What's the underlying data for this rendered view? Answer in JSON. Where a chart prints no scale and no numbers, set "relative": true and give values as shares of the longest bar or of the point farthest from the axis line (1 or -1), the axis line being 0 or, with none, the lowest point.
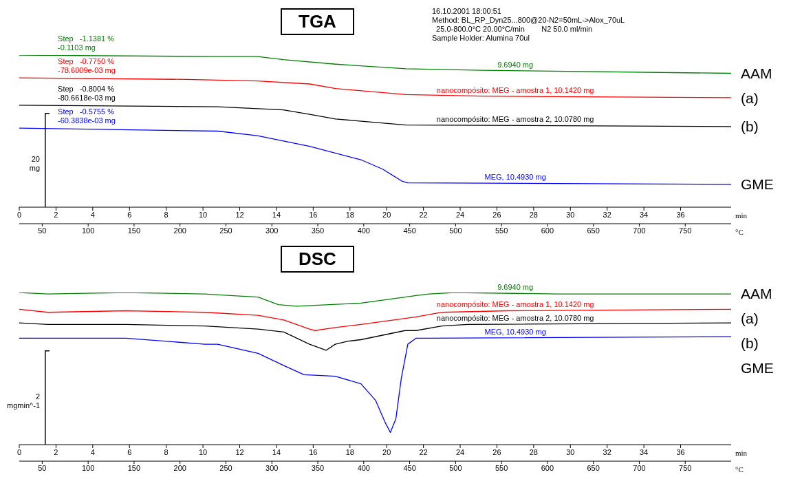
{
  "chart_data": [
    {
      "type": "line",
      "title": "TGA",
      "relative": true,
      "xlabel": "min",
      "x2label": "°C",
      "xlim": [
        0,
        38.75
      ],
      "xticks": [
        0,
        2,
        4,
        6,
        8,
        10,
        12,
        14,
        16,
        18,
        20,
        22,
        24,
        26,
        28,
        30,
        32,
        34,
        36
      ],
      "x2lim": [
        25,
        800
      ],
      "x2ticks": [
        50,
        100,
        150,
        200,
        250,
        300,
        350,
        400,
        450,
        500,
        550,
        600,
        650,
        700,
        750
      ],
      "legend": false,
      "marker": "none",
      "line_style": "solid",
      "series": [
        {
          "name": "9.6940 mg",
          "color": "#008000",
          "x": [
            0,
            10.81,
            12.96,
            14.37,
            17.22,
            21.04,
            25.15,
            38.74
          ],
          "values": [
            1.0,
            0.99,
            0.99,
            0.97,
            0.94,
            0.91,
            0.9,
            0.88
          ]
        },
        {
          "name": "nanocompósito: MEG - amostra 1, 10.1420 mg",
          "color": "#ff0000",
          "x": [
            0,
            9.07,
            12.96,
            15.81,
            17.22,
            21.04,
            25.15,
            38.74
          ],
          "values": [
            0.85,
            0.84,
            0.83,
            0.81,
            0.78,
            0.74,
            0.73,
            0.72
          ]
        },
        {
          "name": "nanocompósito: MEG - amostra 2, 10.0780 mg",
          "color": "#000000",
          "x": [
            0,
            10.81,
            14.37,
            15.81,
            17.22,
            21.04,
            38.74
          ],
          "values": [
            0.67,
            0.66,
            0.64,
            0.61,
            0.58,
            0.54,
            0.53
          ]
        },
        {
          "name": "MEG, 10.4930 mg",
          "color": "#0000ff",
          "x": [
            0,
            10.81,
            12.96,
            15.81,
            18.63,
            19.78,
            20.85,
            21.15,
            38.74
          ],
          "values": [
            0.52,
            0.5,
            0.47,
            0.4,
            0.31,
            0.25,
            0.17,
            0.16,
            0.15
          ]
        }
      ],
      "annotations": [
        "AAM",
        "(a)",
        "(b)",
        "GME",
        "20\nmg",
        "Step   -1.1381 %\n-0.1103 mg",
        "Step   -0.7750 %\n-78.6009e-03 mg",
        "Step   -0.8004 %\n-80.6618e-03 mg",
        "Step   -0.5755 %\n-60.3838e-03 mg",
        "16.10.2001 18:00:51",
        "Method: BL_RP_Dyn25...800@20-N2=50mL->Alox_70uL",
        "  25.0-800.0°C 20.00°C/min        N2 50.0 ml/min",
        "Sample Holder: Alumina 70ul"
      ]
    },
    {
      "type": "line",
      "title": "DSC",
      "relative": true,
      "xlabel": "min",
      "x2label": "°C",
      "xlim": [
        0,
        38.75
      ],
      "xticks": [
        0,
        2,
        4,
        6,
        8,
        10,
        12,
        14,
        16,
        18,
        20,
        22,
        24,
        26,
        28,
        30,
        32,
        34,
        36
      ],
      "x2lim": [
        25,
        800
      ],
      "x2ticks": [
        50,
        100,
        150,
        200,
        250,
        300,
        350,
        400,
        450,
        500,
        550,
        600,
        650,
        700,
        750
      ],
      "legend": false,
      "marker": "none",
      "line_style": "solid",
      "series": [
        {
          "name": "9.6940 mg",
          "color": "#008000",
          "x": [
            0,
            1.56,
            5.8,
            10.1,
            11.5,
            13.0,
            14.1,
            15.1,
            18.6,
            21.0,
            21.6,
            22.3,
            23.7,
            29.4,
            38.74
          ],
          "values": [
            1.0,
            0.99,
            1.0,
            0.99,
            0.98,
            0.97,
            0.92,
            0.91,
            0.93,
            0.97,
            0.98,
            0.99,
            1.0,
            0.99,
            0.99
          ]
        },
        {
          "name": "nanocompósito: MEG - amostra 1, 10.1420 mg",
          "color": "#ff0000",
          "x": [
            0,
            1.56,
            5.8,
            10.1,
            13.0,
            14.4,
            15.8,
            16.1,
            17.2,
            18.6,
            21.0,
            21.6,
            23.0,
            26.6,
            38.74
          ],
          "values": [
            0.89,
            0.87,
            0.88,
            0.87,
            0.85,
            0.82,
            0.76,
            0.75,
            0.77,
            0.79,
            0.83,
            0.84,
            0.87,
            0.88,
            0.89
          ]
        },
        {
          "name": "nanocompósito: MEG - amostra 2, 10.0780 mg",
          "color": "#000000",
          "x": [
            0,
            1.56,
            5.8,
            10.1,
            13.0,
            14.4,
            15.8,
            16.7,
            17.2,
            17.9,
            18.6,
            21.0,
            21.6,
            23.0,
            24.4,
            38.74
          ],
          "values": [
            0.8,
            0.79,
            0.79,
            0.78,
            0.76,
            0.74,
            0.66,
            0.62,
            0.66,
            0.68,
            0.69,
            0.75,
            0.75,
            0.78,
            0.79,
            0.8
          ]
        },
        {
          "name": "MEG, 10.4930 mg",
          "color": "#0000ff",
          "x": [
            0,
            5.8,
            10.1,
            10.8,
            13.0,
            14.4,
            15.5,
            17.2,
            18.6,
            19.4,
            19.9,
            20.2,
            20.5,
            20.8,
            21.15,
            21.6,
            22.3,
            38.74
          ],
          "values": [
            0.7,
            0.7,
            0.66,
            0.66,
            0.6,
            0.52,
            0.46,
            0.45,
            0.4,
            0.29,
            0.15,
            0.08,
            0.17,
            0.44,
            0.66,
            0.7,
            0.7,
            0.71
          ]
        }
      ],
      "annotations": [
        "AAM",
        "(a)",
        "(b)",
        "GME",
        "2\nmgmin^-1"
      ]
    }
  ]
}
